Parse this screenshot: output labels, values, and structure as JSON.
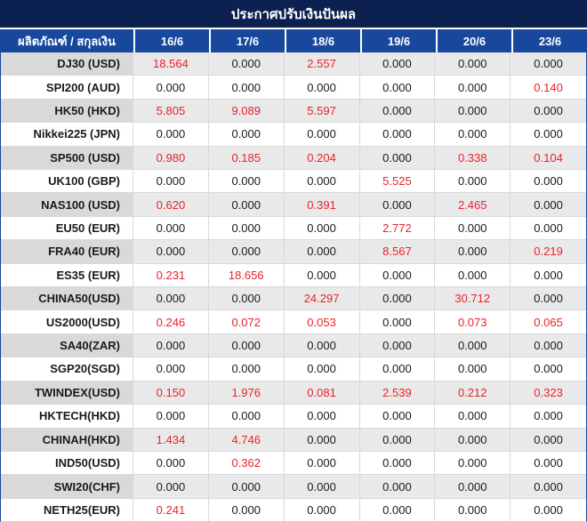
{
  "title": "ประกาศปรับเงินปันผล",
  "colors": {
    "title_bg": "#0d2151",
    "header_bg": "#17489d",
    "nonzero_value_red": "#e8232a",
    "striped_row_bg": "#e9e9e9",
    "striped_label_bg": "#d9d9d9",
    "value_text": "#1a1a1a"
  },
  "table": {
    "corner_header": "ผลิตภัณฑ์ / สกุลเงิน",
    "date_columns": [
      "16/6",
      "17/6",
      "18/6",
      "19/6",
      "20/6",
      "23/6"
    ],
    "rows": [
      {
        "product": "DJ30 (USD)",
        "values": [
          "18.564",
          "0.000",
          "2.557",
          "0.000",
          "0.000",
          "0.000"
        ]
      },
      {
        "product": "SPI200 (AUD)",
        "values": [
          "0.000",
          "0.000",
          "0.000",
          "0.000",
          "0.000",
          "0.140"
        ]
      },
      {
        "product": "HK50 (HKD)",
        "values": [
          "5.805",
          "9.089",
          "5.597",
          "0.000",
          "0.000",
          "0.000"
        ]
      },
      {
        "product": "Nikkei225 (JPN)",
        "values": [
          "0.000",
          "0.000",
          "0.000",
          "0.000",
          "0.000",
          "0.000"
        ]
      },
      {
        "product": "SP500 (USD)",
        "values": [
          "0.980",
          "0.185",
          "0.204",
          "0.000",
          "0.338",
          "0.104"
        ]
      },
      {
        "product": "UK100 (GBP)",
        "values": [
          "0.000",
          "0.000",
          "0.000",
          "5.525",
          "0.000",
          "0.000"
        ]
      },
      {
        "product": "NAS100 (USD)",
        "values": [
          "0.620",
          "0.000",
          "0.391",
          "0.000",
          "2.465",
          "0.000"
        ]
      },
      {
        "product": "EU50 (EUR)",
        "values": [
          "0.000",
          "0.000",
          "0.000",
          "2.772",
          "0.000",
          "0.000"
        ]
      },
      {
        "product": "FRA40 (EUR)",
        "values": [
          "0.000",
          "0.000",
          "0.000",
          "8.567",
          "0.000",
          "0.219"
        ]
      },
      {
        "product": "ES35 (EUR)",
        "values": [
          "0.231",
          "18.656",
          "0.000",
          "0.000",
          "0.000",
          "0.000"
        ]
      },
      {
        "product": "CHINA50(USD)",
        "values": [
          "0.000",
          "0.000",
          "24.297",
          "0.000",
          "30.712",
          "0.000"
        ]
      },
      {
        "product": "US2000(USD)",
        "values": [
          "0.246",
          "0.072",
          "0.053",
          "0.000",
          "0.073",
          "0.065"
        ]
      },
      {
        "product": "SA40(ZAR)",
        "values": [
          "0.000",
          "0.000",
          "0.000",
          "0.000",
          "0.000",
          "0.000"
        ]
      },
      {
        "product": "SGP20(SGD)",
        "values": [
          "0.000",
          "0.000",
          "0.000",
          "0.000",
          "0.000",
          "0.000"
        ]
      },
      {
        "product": "TWINDEX(USD)",
        "values": [
          "0.150",
          "1.976",
          "0.081",
          "2.539",
          "0.212",
          "0.323"
        ]
      },
      {
        "product": "HKTECH(HKD)",
        "values": [
          "0.000",
          "0.000",
          "0.000",
          "0.000",
          "0.000",
          "0.000"
        ]
      },
      {
        "product": "CHINAH(HKD)",
        "values": [
          "1.434",
          "4.746",
          "0.000",
          "0.000",
          "0.000",
          "0.000"
        ]
      },
      {
        "product": "IND50(USD)",
        "values": [
          "0.000",
          "0.362",
          "0.000",
          "0.000",
          "0.000",
          "0.000"
        ]
      },
      {
        "product": "SWI20(CHF)",
        "values": [
          "0.000",
          "0.000",
          "0.000",
          "0.000",
          "0.000",
          "0.000"
        ]
      },
      {
        "product": "NETH25(EUR)",
        "values": [
          "0.241",
          "0.000",
          "0.000",
          "0.000",
          "0.000",
          "0.000"
        ]
      }
    ]
  }
}
